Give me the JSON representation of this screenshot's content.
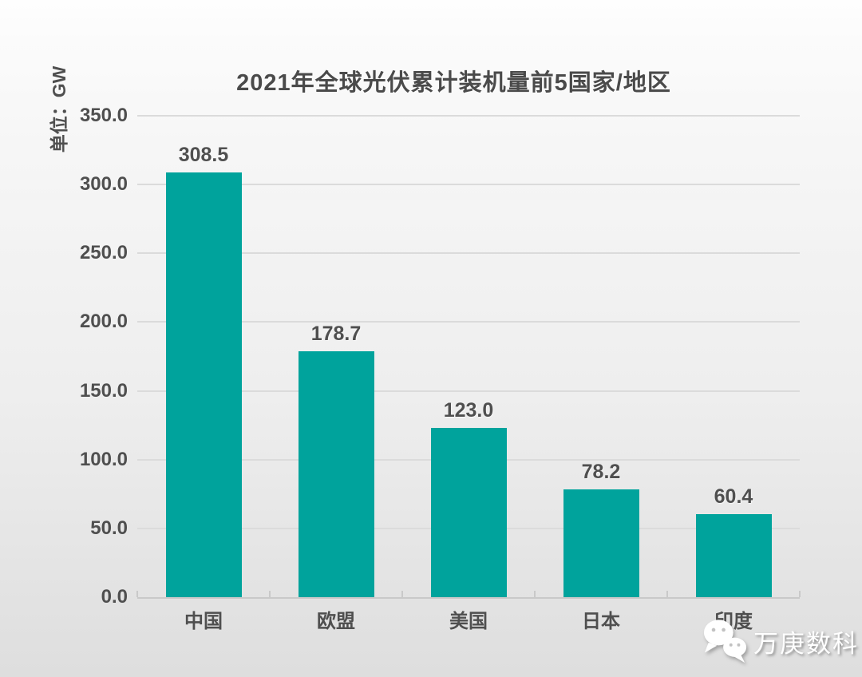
{
  "chart_data": {
    "type": "bar",
    "title": "2021年全球光伏累计装机量前5国家/地区",
    "unit_label": "单位：GW",
    "categories": [
      "中国",
      "欧盟",
      "美国",
      "日本",
      "印度"
    ],
    "values": [
      308.5,
      178.7,
      123.0,
      78.2,
      60.4
    ],
    "value_labels": [
      "308.5",
      "178.7",
      "123.0",
      "78.2",
      "60.4"
    ],
    "ylim": [
      0,
      350
    ],
    "ytick_interval": 50,
    "yticks": [
      "350.0",
      "300.0",
      "250.0",
      "200.0",
      "150.0",
      "100.0",
      "50.0",
      "0.0"
    ],
    "grid": true,
    "legend": "none",
    "bar_color": "#00a39c",
    "text_color": "#4f4f4f",
    "gridline_color": "#dbdbdb",
    "axis_line_color": "#c9c9c9"
  },
  "watermark": {
    "label": "万庚数科",
    "icon": "wechat-icon"
  }
}
